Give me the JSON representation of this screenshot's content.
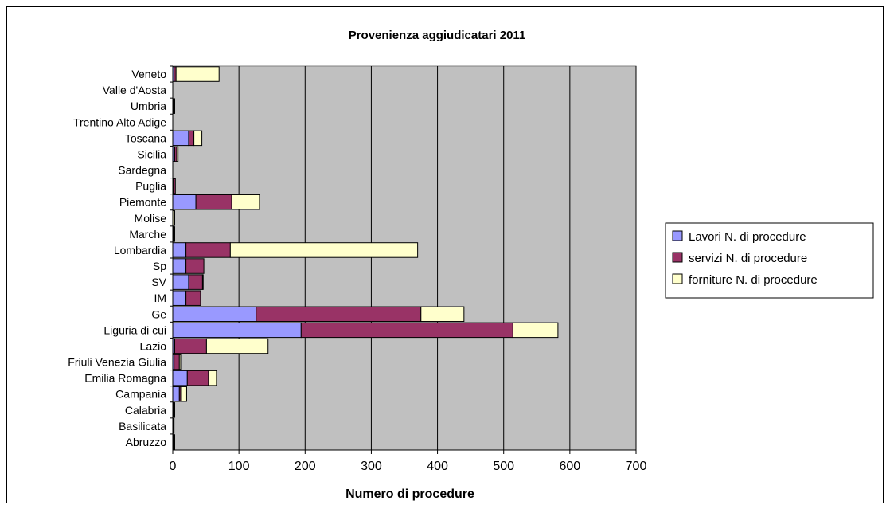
{
  "chart_data": {
    "type": "bar",
    "orientation": "horizontal",
    "stacked": true,
    "title": "Provenienza aggiudicatari 2011",
    "xlabel": "Numero di procedure",
    "ylabel": "",
    "xlim": [
      0,
      700
    ],
    "xticks": [
      0,
      100,
      200,
      300,
      400,
      500,
      600,
      700
    ],
    "grid": true,
    "legend_position": "right",
    "categories": [
      "Veneto",
      "Valle d'Aosta",
      "Umbria",
      "Trentino Alto Adige",
      "Toscana",
      "Sicilia",
      "Sardegna",
      "Puglia",
      "Piemonte",
      "Molise",
      "Marche",
      "Lombardia",
      "Sp",
      "SV",
      "IM",
      "Ge",
      "Liguria di cui",
      "Lazio",
      "Friuli Venezia Giulia",
      "Emilia Romagna",
      "Campania",
      "Calabria",
      "Basilicata",
      "Abruzzo"
    ],
    "series": [
      {
        "name": "Lavori  N. di procedure",
        "color": "#9999ff",
        "values": [
          2,
          0,
          1,
          0,
          24,
          3,
          0,
          1,
          35,
          0,
          1,
          20,
          20,
          24,
          20,
          126,
          194,
          3,
          2,
          22,
          10,
          1,
          1,
          1
        ]
      },
      {
        "name": "servizi N. di procedure",
        "color": "#993366",
        "values": [
          3,
          0,
          2,
          0,
          8,
          3,
          0,
          3,
          54,
          0,
          2,
          67,
          27,
          21,
          22,
          249,
          320,
          48,
          8,
          32,
          2,
          2,
          1,
          0
        ]
      },
      {
        "name": "forniture  N. di procedure",
        "color": "#ffffcc",
        "values": [
          65,
          0,
          0,
          0,
          12,
          2,
          0,
          0,
          42,
          3,
          0,
          283,
          0,
          1,
          0,
          65,
          68,
          93,
          2,
          12,
          9,
          0,
          0,
          2
        ]
      }
    ]
  }
}
